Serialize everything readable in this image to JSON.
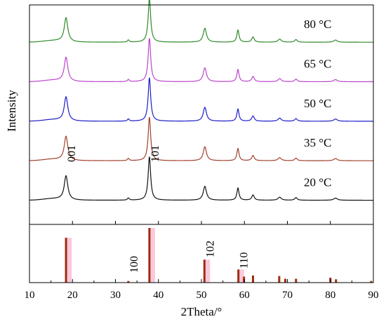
{
  "chart_data": {
    "type": "line",
    "title": "",
    "xlabel": "2Theta/°",
    "ylabel": "Intensity",
    "xlim": [
      10,
      90
    ],
    "xticks": [
      10,
      20,
      30,
      40,
      50,
      60,
      70,
      80,
      90
    ],
    "grid": false,
    "peaks": [
      {
        "two_theta": 18.5,
        "height": 0.55,
        "width": 0.5
      },
      {
        "two_theta": 33.0,
        "height": 0.05,
        "width": 0.25
      },
      {
        "two_theta": 37.9,
        "height": 1.0,
        "width": 0.35
      },
      {
        "two_theta": 50.8,
        "height": 0.32,
        "width": 0.45
      },
      {
        "two_theta": 58.5,
        "height": 0.28,
        "width": 0.3
      },
      {
        "two_theta": 62.0,
        "height": 0.12,
        "width": 0.35
      },
      {
        "two_theta": 68.2,
        "height": 0.07,
        "width": 0.45
      },
      {
        "two_theta": 72.0,
        "height": 0.06,
        "width": 0.35
      },
      {
        "two_theta": 81.2,
        "height": 0.05,
        "width": 0.5
      }
    ],
    "series": [
      {
        "name": "20 °C",
        "color": "#111111",
        "baseline_frac": 0.89
      },
      {
        "name": "35 °C",
        "color": "#a0402e",
        "baseline_frac": 0.71
      },
      {
        "name": "50 °C",
        "color": "#1c1cc8",
        "baseline_frac": 0.53
      },
      {
        "name": "65 °C",
        "color": "#bb44cc",
        "baseline_frac": 0.35
      },
      {
        "name": "80 °C",
        "color": "#2f8a2a",
        "baseline_frac": 0.17
      }
    ],
    "reference": {
      "color": "#a02c10",
      "highlight": "#f9c8dc",
      "lines": [
        {
          "two_theta": 18.5,
          "intensity": 0.82,
          "label": "001"
        },
        {
          "two_theta": 33.0,
          "intensity": 0.03,
          "label": "100"
        },
        {
          "two_theta": 37.9,
          "intensity": 1.0,
          "label": "101"
        },
        {
          "two_theta": 50.7,
          "intensity": 0.42,
          "label": "102"
        },
        {
          "two_theta": 58.6,
          "intensity": 0.24,
          "label": "110"
        },
        {
          "two_theta": 59.9,
          "intensity": 0.11,
          "label": ""
        },
        {
          "two_theta": 62.0,
          "intensity": 0.13,
          "label": ""
        },
        {
          "two_theta": 68.1,
          "intensity": 0.12,
          "label": ""
        },
        {
          "two_theta": 69.5,
          "intensity": 0.07,
          "label": ""
        },
        {
          "two_theta": 72.0,
          "intensity": 0.07,
          "label": ""
        },
        {
          "two_theta": 80.0,
          "intensity": 0.09,
          "label": ""
        },
        {
          "two_theta": 81.3,
          "intensity": 0.06,
          "label": ""
        },
        {
          "two_theta": 89.5,
          "intensity": 0.03,
          "label": ""
        }
      ]
    }
  }
}
